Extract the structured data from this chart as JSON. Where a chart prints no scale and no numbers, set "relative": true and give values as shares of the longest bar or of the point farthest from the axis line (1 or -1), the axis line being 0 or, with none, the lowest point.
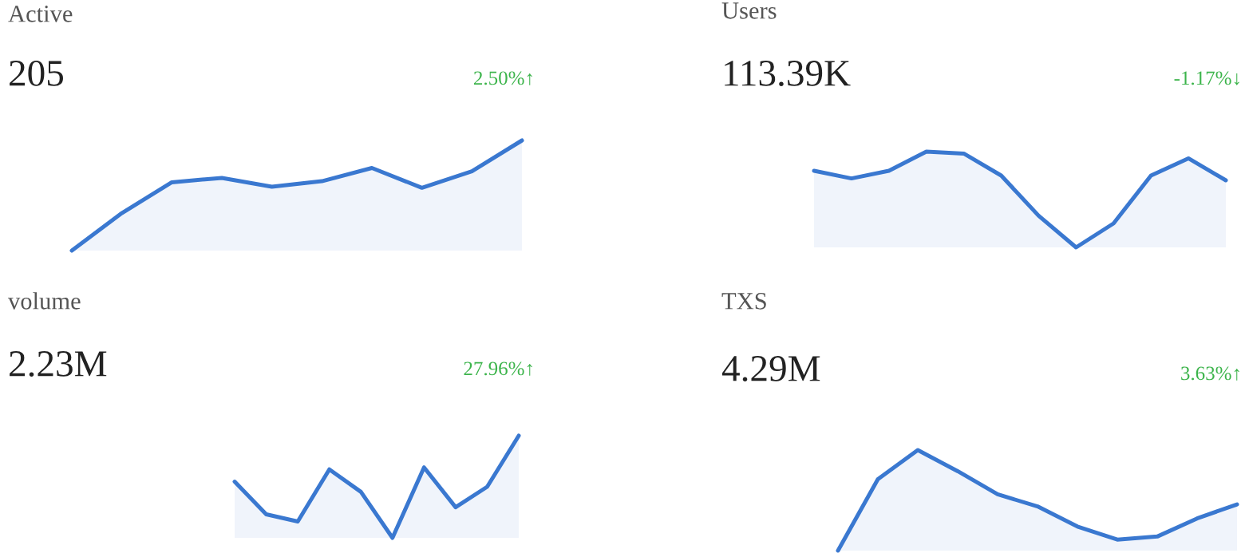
{
  "chart_data": [
    {
      "type": "area",
      "title": "Active",
      "subtitle": "205",
      "annotations": [
        "2.50%↑"
      ],
      "relative": true,
      "categories": [
        null,
        null,
        null,
        null,
        null,
        null,
        null,
        null,
        null,
        null
      ],
      "series": [
        {
          "color": "#3a78d0",
          "values": [
            0,
            0.34,
            0.62,
            0.66,
            0.58,
            0.63,
            0.75,
            0.57,
            0.72,
            1.0
          ]
        }
      ]
    },
    {
      "type": "area",
      "title": "Users",
      "subtitle": "113.39K",
      "annotations": [
        "-1.17%↓"
      ],
      "relative": true,
      "categories": [
        null,
        null,
        null,
        null,
        null,
        null,
        null,
        null,
        null,
        null,
        null,
        null
      ],
      "series": [
        {
          "color": "#3a78d0",
          "values": [
            0.8,
            0.72,
            0.8,
            1.0,
            0.98,
            0.75,
            0.33,
            0,
            0.25,
            0.75,
            0.93,
            0.7
          ]
        }
      ]
    },
    {
      "type": "area",
      "title": "volume",
      "subtitle": "2.23M",
      "annotations": [
        "27.96%↑"
      ],
      "relative": true,
      "categories": [
        null,
        null,
        null,
        null,
        null,
        null,
        null,
        null,
        null,
        null
      ],
      "series": [
        {
          "color": "#3a78d0",
          "values": [
            0.55,
            0.23,
            0.16,
            0.67,
            0.45,
            0,
            0.69,
            0.3,
            0.5,
            1.0
          ]
        }
      ]
    },
    {
      "type": "area",
      "title": "TXS",
      "subtitle": "4.29M",
      "annotations": [
        "3.63%↑"
      ],
      "relative": true,
      "categories": [
        null,
        null,
        null,
        null,
        null,
        null,
        null,
        null,
        null,
        null,
        null
      ],
      "series": [
        {
          "color": "#3a78d0",
          "values": [
            0,
            0.71,
            1,
            0.79,
            0.56,
            0.44,
            0.24,
            0.11,
            0.14,
            0.32,
            0.46
          ]
        }
      ]
    }
  ]
}
